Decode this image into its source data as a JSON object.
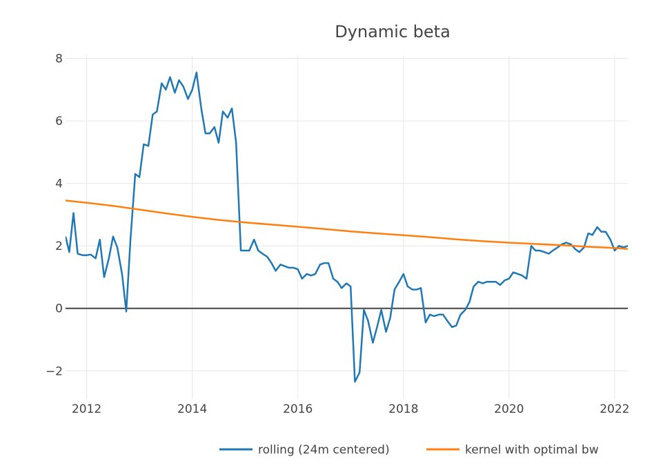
{
  "chart_data": {
    "type": "line",
    "title": "Dynamic beta",
    "xlabel": "",
    "ylabel": "",
    "xlim": [
      2011.6,
      2022.25
    ],
    "ylim": [
      -2.9,
      8.1
    ],
    "x_ticks": [
      2012,
      2014,
      2016,
      2018,
      2020,
      2022
    ],
    "x_tick_labels": [
      "2012",
      "2014",
      "2016",
      "2018",
      "2020",
      "2022"
    ],
    "y_ticks": [
      -2,
      0,
      2,
      4,
      6,
      8
    ],
    "y_tick_labels": [
      "−2",
      "0",
      "2",
      "4",
      "6",
      "8"
    ],
    "zero_line": true,
    "grid": true,
    "legend_position": "bottom-right",
    "series": [
      {
        "name": "rolling (24m centered)",
        "color": "#1f77b4",
        "x": [
          2011.6,
          2011.67,
          2011.75,
          2011.83,
          2011.92,
          2012.0,
          2012.08,
          2012.17,
          2012.25,
          2012.33,
          2012.42,
          2012.5,
          2012.58,
          2012.67,
          2012.75,
          2012.83,
          2012.92,
          2013.0,
          2013.08,
          2013.17,
          2013.25,
          2013.33,
          2013.42,
          2013.5,
          2013.58,
          2013.67,
          2013.75,
          2013.83,
          2013.92,
          2014.0,
          2014.08,
          2014.17,
          2014.25,
          2014.33,
          2014.42,
          2014.5,
          2014.58,
          2014.67,
          2014.75,
          2014.83,
          2014.92,
          2015.0,
          2015.08,
          2015.17,
          2015.25,
          2015.33,
          2015.42,
          2015.5,
          2015.58,
          2015.67,
          2015.75,
          2015.83,
          2015.92,
          2016.0,
          2016.08,
          2016.17,
          2016.25,
          2016.33,
          2016.42,
          2016.5,
          2016.58,
          2016.67,
          2016.75,
          2016.83,
          2016.92,
          2017.0,
          2017.08,
          2017.17,
          2017.25,
          2017.33,
          2017.42,
          2017.5,
          2017.58,
          2017.67,
          2017.75,
          2017.83,
          2017.92,
          2018.0,
          2018.08,
          2018.17,
          2018.25,
          2018.33,
          2018.42,
          2018.5,
          2018.58,
          2018.67,
          2018.75,
          2018.83,
          2018.92,
          2019.0,
          2019.08,
          2019.17,
          2019.25,
          2019.33,
          2019.42,
          2019.5,
          2019.58,
          2019.67,
          2019.75,
          2019.83,
          2019.92,
          2020.0,
          2020.08,
          2020.17,
          2020.25,
          2020.33,
          2020.42,
          2020.5,
          2020.58,
          2020.67,
          2020.75,
          2020.83,
          2020.92,
          2021.0,
          2021.08,
          2021.17,
          2021.25,
          2021.33,
          2021.42,
          2021.5,
          2021.58,
          2021.67,
          2021.75,
          2021.83,
          2021.92,
          2022.0,
          2022.08,
          2022.17,
          2022.25
        ],
        "y": [
          2.3,
          1.8,
          3.05,
          1.75,
          1.7,
          1.7,
          1.72,
          1.6,
          2.2,
          1.0,
          1.6,
          2.3,
          1.95,
          1.1,
          -0.1,
          2.2,
          4.3,
          4.2,
          5.25,
          5.2,
          6.2,
          6.3,
          7.2,
          7.0,
          7.4,
          6.9,
          7.3,
          7.1,
          6.7,
          7.0,
          7.55,
          6.4,
          5.6,
          5.6,
          5.8,
          5.3,
          6.3,
          6.1,
          6.4,
          5.3,
          1.85,
          1.85,
          1.85,
          2.2,
          1.85,
          1.75,
          1.65,
          1.45,
          1.2,
          1.4,
          1.35,
          1.3,
          1.3,
          1.25,
          0.95,
          1.1,
          1.05,
          1.1,
          1.4,
          1.45,
          1.45,
          0.95,
          0.85,
          0.65,
          0.8,
          0.7,
          -2.35,
          -2.05,
          -0.05,
          -0.4,
          -1.1,
          -0.6,
          -0.05,
          -0.75,
          -0.3,
          0.6,
          0.85,
          1.1,
          0.7,
          0.6,
          0.6,
          0.65,
          -0.45,
          -0.2,
          -0.25,
          -0.2,
          -0.2,
          -0.4,
          -0.6,
          -0.55,
          -0.2,
          -0.05,
          0.2,
          0.7,
          0.85,
          0.8,
          0.85,
          0.85,
          0.85,
          0.75,
          0.9,
          0.95,
          1.15,
          1.1,
          1.05,
          0.95,
          2.0,
          1.85,
          1.85,
          1.8,
          1.75,
          1.85,
          1.95,
          2.05,
          2.1,
          2.05,
          1.9,
          1.8,
          1.95,
          2.4,
          2.35,
          2.6,
          2.45,
          2.45,
          2.2,
          1.85,
          2.0,
          1.95,
          2.0
        ]
      },
      {
        "name": "kernel with optimal bw",
        "color": "#ff7f0e",
        "x": [
          2011.6,
          2012.0,
          2012.5,
          2013.0,
          2013.5,
          2014.0,
          2014.5,
          2015.0,
          2015.5,
          2016.0,
          2016.5,
          2017.0,
          2017.5,
          2018.0,
          2018.5,
          2019.0,
          2019.5,
          2020.0,
          2020.5,
          2021.0,
          2021.5,
          2022.0,
          2022.25
        ],
        "y": [
          3.45,
          3.38,
          3.28,
          3.16,
          3.04,
          2.93,
          2.83,
          2.75,
          2.68,
          2.61,
          2.54,
          2.46,
          2.4,
          2.34,
          2.28,
          2.21,
          2.15,
          2.1,
          2.06,
          2.02,
          1.97,
          1.93,
          1.9
        ]
      }
    ]
  }
}
